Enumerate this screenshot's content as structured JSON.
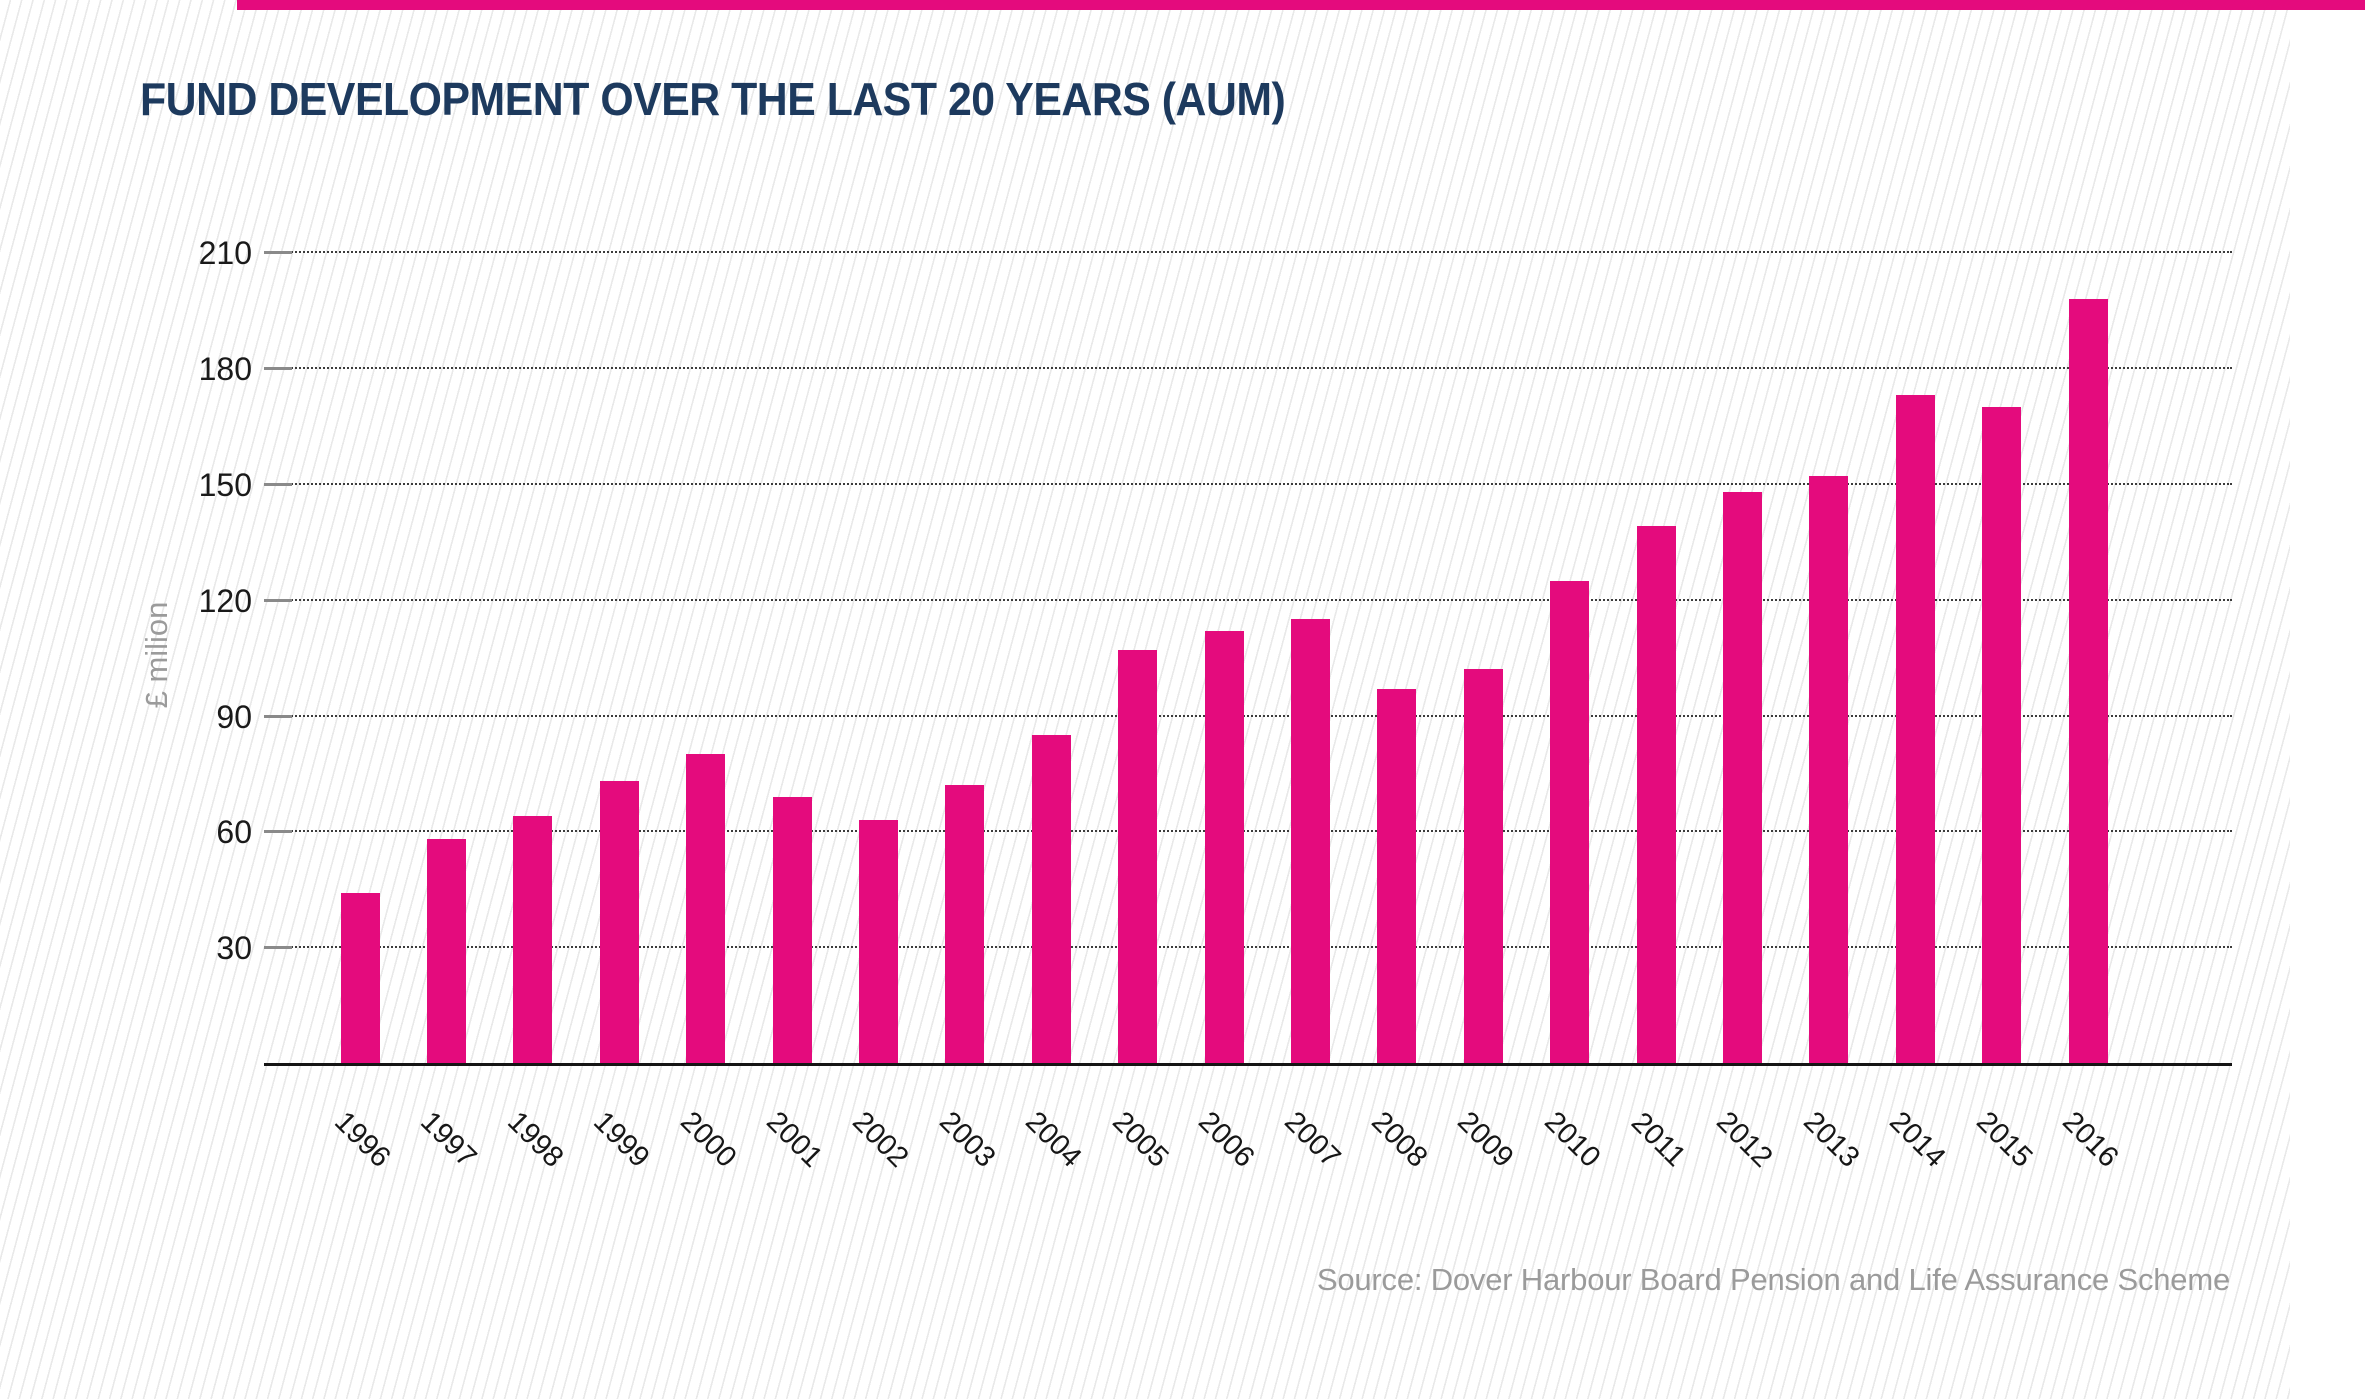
{
  "page": {
    "source_note": "Source: Dover Harbour Board Pension and Life Assurance Scheme"
  },
  "colors": {
    "accent": "#e40b7d",
    "bar": "#e40b7d",
    "title_navy": "#1d3a5e",
    "muted_gray": "#9b9b9b",
    "axis_black": "#1a1a1a"
  },
  "chart_data": {
    "type": "bar",
    "title": "FUND DEVELOPMENT OVER THE LAST 20 YEARS (AUM)",
    "ylabel": "£ milion",
    "xlabel": "",
    "categories": [
      "1996",
      "1997",
      "1998",
      "1999",
      "2000",
      "2001",
      "2002",
      "2003",
      "2004",
      "2005",
      "2006",
      "2007",
      "2008",
      "2009",
      "2010",
      "2011",
      "2012",
      "2013",
      "2014",
      "2015",
      "2016"
    ],
    "values": [
      44,
      58,
      64,
      73,
      80,
      69,
      63,
      72,
      85,
      107,
      112,
      115,
      97,
      102,
      125,
      139,
      148,
      152,
      173,
      170,
      198
    ],
    "ylim": [
      0,
      210
    ],
    "yticks": [
      30,
      60,
      90,
      120,
      150,
      180,
      210
    ],
    "grid": "dotted-horizontal",
    "legend": "none",
    "background_pattern": "diagonal-stripes"
  }
}
